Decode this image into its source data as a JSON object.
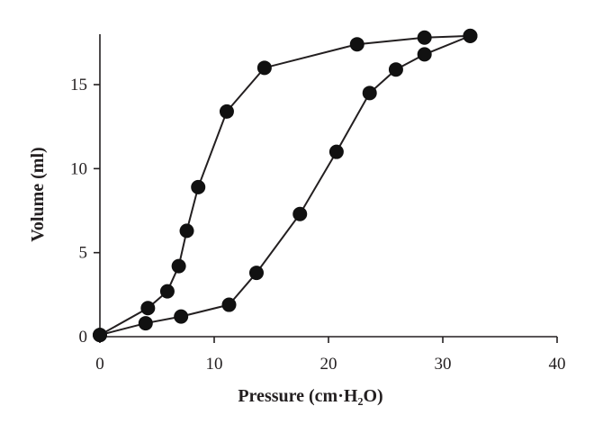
{
  "chart_data": {
    "type": "line",
    "xlabel": "Pressure (cm·H₂O)",
    "ylabel": "Volume (ml)",
    "xlim": [
      0,
      40
    ],
    "ylim": [
      0,
      18
    ],
    "x_ticks": [
      0,
      10,
      20,
      30,
      40
    ],
    "y_ticks": [
      0,
      5,
      10,
      15
    ],
    "x_tick_labels": [
      "0",
      "10",
      "20",
      "30",
      "40"
    ],
    "y_tick_labels": [
      "0",
      "5",
      "10",
      "15"
    ],
    "grid": false,
    "legend": "none",
    "color": "#111111",
    "series": [
      {
        "x": [
          0,
          4.0,
          7.1,
          11.3,
          13.7,
          17.5,
          20.7,
          23.6,
          25.9,
          28.4,
          32.4
        ],
        "y": [
          0.1,
          0.8,
          1.2,
          1.9,
          3.8,
          7.3,
          11.0,
          14.5,
          15.9,
          16.8,
          17.9
        ]
      },
      {
        "x": [
          0,
          4.2,
          5.9,
          6.9,
          7.6,
          8.6,
          11.1,
          14.4,
          22.5,
          28.4,
          32.4
        ],
        "y": [
          0.1,
          1.7,
          2.7,
          4.2,
          6.3,
          8.9,
          13.4,
          16.0,
          17.4,
          17.8,
          17.9
        ]
      }
    ]
  }
}
